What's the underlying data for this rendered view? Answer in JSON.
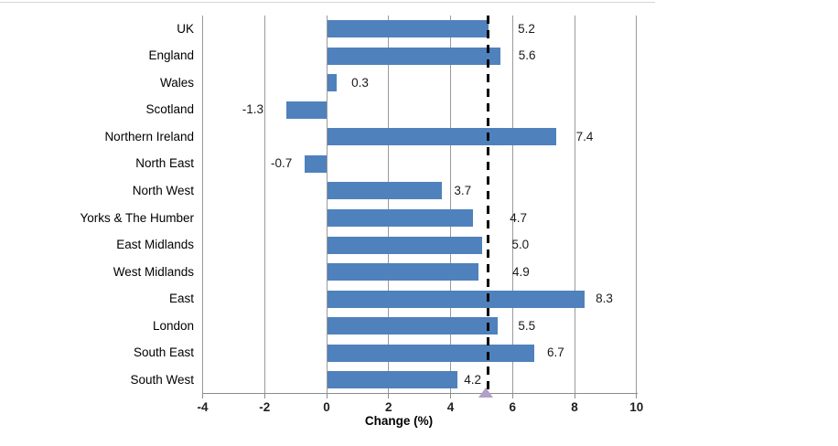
{
  "chart_data": {
    "type": "bar",
    "orientation": "horizontal",
    "title": "",
    "xlabel": "Change (%)",
    "categories": [
      "UK",
      "England",
      "Wales",
      "Scotland",
      "Northern Ireland",
      "North East",
      "North West",
      "Yorks & The Humber",
      "East Midlands",
      "West Midlands",
      "East",
      "London",
      "South East",
      "South West"
    ],
    "values": [
      5.2,
      5.6,
      0.3,
      -1.3,
      7.4,
      -0.7,
      3.7,
      4.7,
      5.0,
      4.9,
      8.3,
      5.5,
      6.7,
      4.2
    ],
    "value_labels": [
      "5.2",
      "5.6",
      "0.3",
      "-1.3",
      "7.4",
      "-0.7",
      "3.7",
      "4.7",
      "5.0",
      "4.9",
      "8.3",
      "5.5",
      "6.7",
      "4.2"
    ],
    "xlim": [
      -4,
      10
    ],
    "xticks": [
      -4,
      -2,
      0,
      2,
      4,
      6,
      8,
      10
    ],
    "xtick_labels": [
      "-4",
      "-2",
      "0",
      "2",
      "4",
      "6",
      "8",
      "10"
    ],
    "grid": true,
    "legend": false,
    "reference_line": {
      "value": 5.2,
      "style": "dashed",
      "color": "#000000",
      "marker": "triangle-up",
      "marker_color": "#B1A0C7"
    },
    "colors": {
      "bar": "#4F81BD",
      "gridline": "#9a9a9a",
      "axis": "#8c8c8c",
      "text": "#000000"
    }
  }
}
